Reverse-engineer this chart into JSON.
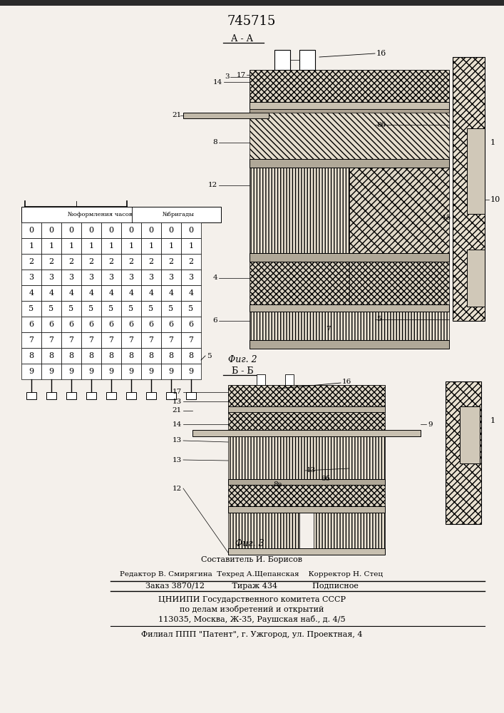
{
  "patent_number": "745715",
  "section_aa": "А - А",
  "section_bb": "Б - Б",
  "fig2_caption": "Φиг. 2",
  "fig3_caption": "Φиг. 3",
  "bg_color": "#f4f0eb",
  "composer_line": "Составитель И. Борисов",
  "editor_line": "Редактор В. Смирягина  Техред А.Щепанская    Корректор Н. Стец",
  "order_line": "Заказ 3870/12           Тираж 434              Подписное",
  "institute_line1": "ЦНИИПИ Государственного комитета СССР",
  "institute_line2": "по делам изобретений и открытий",
  "institute_line3": "113035, Москва, Ж-35, Раушская наб., д. 4/5",
  "branch_line": "Филиал ППП \"Патент\", г. Ужгород, ул. Проектная, 4",
  "table_header1": "№оформления часов",
  "table_header2": "№бригады",
  "digits": [
    "0",
    "1",
    "2",
    "3",
    "4",
    "5",
    "6",
    "7",
    "8",
    "9"
  ]
}
